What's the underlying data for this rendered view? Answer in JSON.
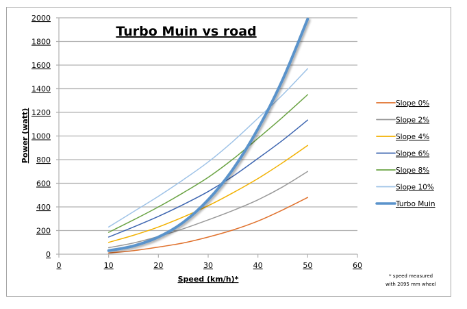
{
  "chart_data": {
    "type": "line",
    "title": "Turbo Muin vs road",
    "xlabel": "Speed (km/h)*",
    "ylabel": "Power (watt)",
    "xlim": [
      0,
      60
    ],
    "ylim": [
      0,
      2000
    ],
    "x_ticks": [
      "0",
      "10",
      "20",
      "30",
      "40",
      "50",
      "60"
    ],
    "y_ticks": [
      "0",
      "200",
      "400",
      "600",
      "800",
      "1000",
      "1200",
      "1400",
      "1600",
      "1800",
      "2000"
    ],
    "grid": "horizontal",
    "legend_position": "right",
    "annotation": [
      "* speed measured",
      "with 2095 mm wheel"
    ],
    "x": [
      10,
      15,
      20,
      25,
      30,
      35,
      40,
      45,
      50
    ],
    "series": [
      {
        "name": "Slope 0%",
        "color": "#e0712c",
        "width": 1.5,
        "values": [
          10,
          30,
          60,
          95,
          145,
          205,
          280,
          375,
          480
        ]
      },
      {
        "name": "Slope 2%",
        "color": "#999999",
        "width": 1.5,
        "values": [
          55,
          95,
          150,
          215,
          290,
          370,
          460,
          570,
          700
        ]
      },
      {
        "name": "Slope 4%",
        "color": "#f2b100",
        "width": 1.5,
        "values": [
          100,
          160,
          230,
          315,
          410,
          520,
          640,
          775,
          920
        ]
      },
      {
        "name": "Slope 6%",
        "color": "#3d65b0",
        "width": 1.5,
        "values": [
          145,
          230,
          320,
          420,
          530,
          660,
          810,
          965,
          1135
        ]
      },
      {
        "name": "Slope 8%",
        "color": "#6aa343",
        "width": 1.5,
        "values": [
          185,
          290,
          400,
          520,
          650,
          805,
          980,
          1160,
          1350
        ]
      },
      {
        "name": "Slope 10%",
        "color": "#9fc3e7",
        "width": 1.5,
        "values": [
          230,
          360,
          490,
          630,
          780,
          955,
          1150,
          1350,
          1570
        ]
      },
      {
        "name": "Turbo Muin",
        "color": "#5a93cb",
        "width": 4,
        "values": [
          30,
          70,
          145,
          270,
          460,
          720,
          1060,
          1480,
          1990
        ]
      }
    ]
  }
}
